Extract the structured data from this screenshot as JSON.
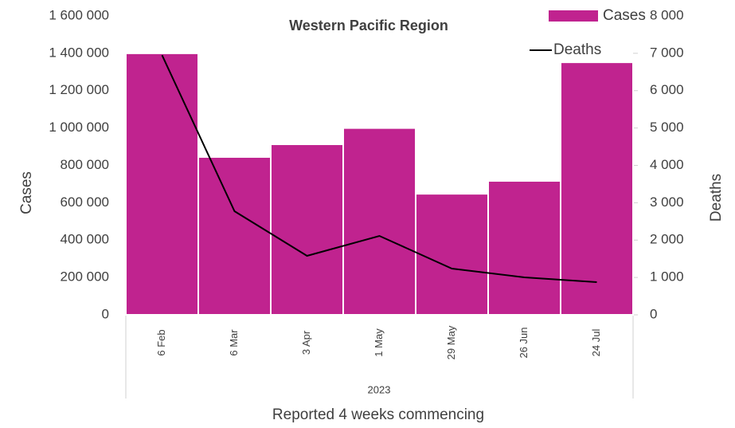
{
  "chart_data": {
    "type": "bar-line",
    "title": "Western Pacific Region",
    "x_label": "Reported 4 weeks commencing",
    "x_group_label": "2023",
    "y_label": "Cases",
    "y2_label": "Deaths",
    "categories": [
      "6 Feb",
      "6 Mar",
      "3 Apr",
      "1 May",
      "29 May",
      "26 Jun",
      "24 Jul"
    ],
    "series": [
      {
        "name": "Cases",
        "type": "bar",
        "color": "#c0238f",
        "values": [
          1400000,
          845000,
          913000,
          1000000,
          648000,
          717000,
          1352000
        ]
      },
      {
        "name": "Deaths",
        "type": "line",
        "axis": "y2",
        "color": "#000000",
        "values": [
          6950,
          2773,
          1579,
          2112,
          1237,
          1003,
          875
        ]
      }
    ],
    "ylim": [
      0,
      1600000
    ],
    "yticks": [
      0,
      {
        "value": 200000,
        "label": "200 000"
      },
      {
        "value": 400000,
        "label": "400 000"
      },
      {
        "value": 600000,
        "label": "600 000"
      },
      {
        "value": 800000,
        "label": "800 000"
      },
      {
        "value": 1000000,
        "label": "1 000 000"
      },
      {
        "value": 1200000,
        "label": "1 200 000"
      },
      {
        "value": 1400000,
        "label": "1 400 000"
      },
      {
        "value": 1600000,
        "label": "1 600 000"
      }
    ],
    "y2lim": [
      0,
      8000
    ],
    "y2ticks": [
      0,
      {
        "value": 1000,
        "label": "1 000"
      },
      {
        "value": 2000,
        "label": "2 000"
      },
      {
        "value": 3000,
        "label": "3 000"
      },
      {
        "value": 4000,
        "label": "4 000"
      },
      {
        "value": 5000,
        "label": "5 000"
      },
      {
        "value": 6000,
        "label": "6 000"
      },
      {
        "value": 7000,
        "label": "7 000"
      },
      {
        "value": 8000,
        "label": "8 000"
      }
    ],
    "legend": "top-right"
  }
}
